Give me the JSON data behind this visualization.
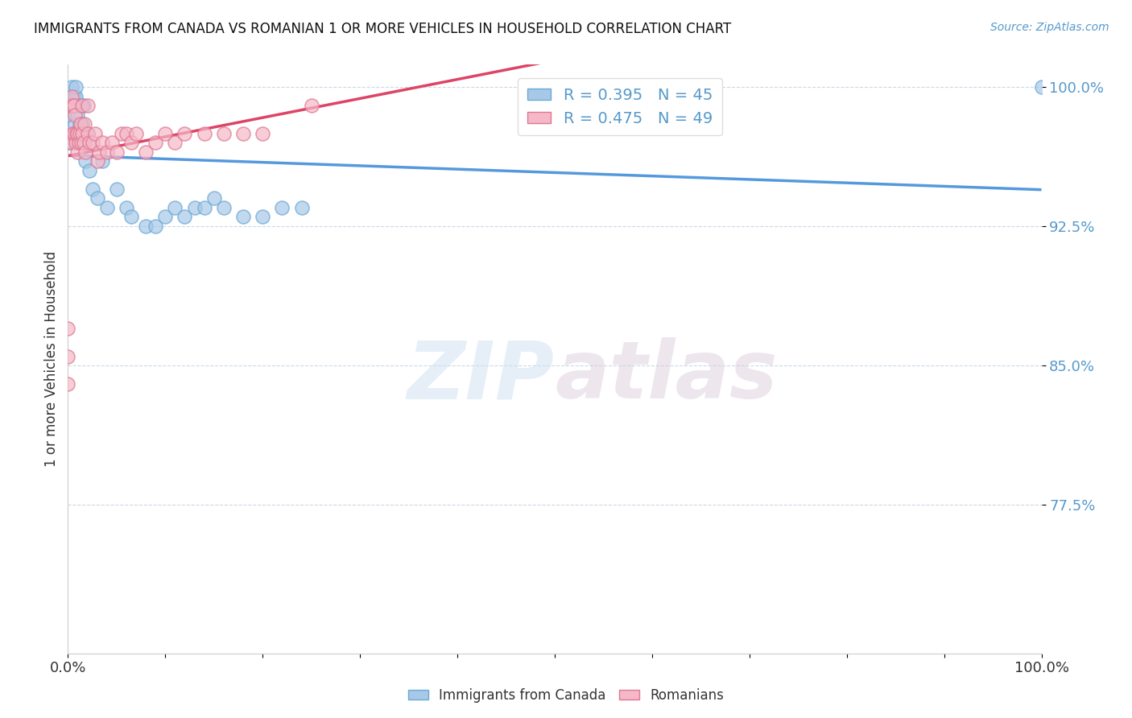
{
  "title": "IMMIGRANTS FROM CANADA VS ROMANIAN 1 OR MORE VEHICLES IN HOUSEHOLD CORRELATION CHART",
  "source": "Source: ZipAtlas.com",
  "ylabel": "1 or more Vehicles in Household",
  "xlim": [
    0.0,
    1.0
  ],
  "ylim": [
    0.695,
    1.012
  ],
  "yticks": [
    0.775,
    0.85,
    0.925,
    1.0
  ],
  "ytick_labels": [
    "77.5%",
    "85.0%",
    "92.5%",
    "100.0%"
  ],
  "xtick_positions": [
    0.0,
    0.1,
    0.2,
    0.3,
    0.4,
    0.5,
    0.6,
    0.7,
    0.8,
    0.9,
    1.0
  ],
  "xtick_labels": [
    "0.0%",
    "",
    "",
    "",
    "",
    "",
    "",
    "",
    "",
    "",
    "100.0%"
  ],
  "canada_color": "#a8c8e8",
  "canadian_edge": "#6aaad4",
  "romanian_color": "#f4b8c8",
  "romanian_edge": "#e07890",
  "canada_r": 0.395,
  "canada_n": 45,
  "romanian_r": 0.475,
  "romanian_n": 49,
  "legend_label_canada": "Immigrants from Canada",
  "legend_label_romanian": "Romanians",
  "watermark_zip": "ZIP",
  "watermark_atlas": "atlas",
  "canada_x": [
    0.0,
    0.0,
    0.002,
    0.003,
    0.004,
    0.005,
    0.005,
    0.006,
    0.007,
    0.008,
    0.008,
    0.009,
    0.01,
    0.01,
    0.011,
    0.012,
    0.013,
    0.014,
    0.015,
    0.016,
    0.017,
    0.018,
    0.02,
    0.022,
    0.025,
    0.03,
    0.035,
    0.04,
    0.05,
    0.06,
    0.065,
    0.08,
    0.09,
    0.1,
    0.11,
    0.12,
    0.13,
    0.14,
    0.15,
    0.16,
    0.18,
    0.2,
    0.22,
    0.24,
    1.0
  ],
  "canada_y": [
    0.97,
    0.985,
    0.99,
    0.995,
    1.0,
    0.97,
    0.99,
    0.995,
    0.98,
    0.995,
    1.0,
    0.975,
    0.985,
    0.99,
    0.97,
    0.98,
    0.99,
    0.975,
    0.98,
    0.99,
    0.97,
    0.96,
    0.975,
    0.955,
    0.945,
    0.94,
    0.96,
    0.935,
    0.945,
    0.935,
    0.93,
    0.925,
    0.925,
    0.93,
    0.935,
    0.93,
    0.935,
    0.935,
    0.94,
    0.935,
    0.93,
    0.93,
    0.935,
    0.935,
    1.0
  ],
  "romanian_x": [
    0.0,
    0.0,
    0.0,
    0.002,
    0.003,
    0.004,
    0.005,
    0.005,
    0.006,
    0.006,
    0.007,
    0.008,
    0.009,
    0.01,
    0.01,
    0.011,
    0.012,
    0.013,
    0.014,
    0.015,
    0.015,
    0.016,
    0.017,
    0.018,
    0.02,
    0.02,
    0.022,
    0.025,
    0.028,
    0.03,
    0.032,
    0.035,
    0.04,
    0.045,
    0.05,
    0.055,
    0.06,
    0.065,
    0.07,
    0.08,
    0.09,
    0.1,
    0.11,
    0.12,
    0.14,
    0.16,
    0.18,
    0.2,
    0.25
  ],
  "romanian_y": [
    0.84,
    0.855,
    0.87,
    0.99,
    0.97,
    0.995,
    0.975,
    0.99,
    0.975,
    0.99,
    0.985,
    0.97,
    0.975,
    0.965,
    0.975,
    0.97,
    0.975,
    0.98,
    0.97,
    0.975,
    0.99,
    0.97,
    0.98,
    0.965,
    0.975,
    0.99,
    0.97,
    0.97,
    0.975,
    0.96,
    0.965,
    0.97,
    0.965,
    0.97,
    0.965,
    0.975,
    0.975,
    0.97,
    0.975,
    0.965,
    0.97,
    0.975,
    0.97,
    0.975,
    0.975,
    0.975,
    0.975,
    0.975,
    0.99
  ],
  "trendline_color_canada": "#5599dd",
  "trendline_color_romanian": "#dd4466"
}
